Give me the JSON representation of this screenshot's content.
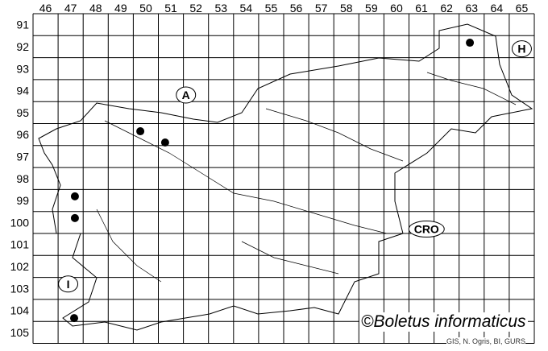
{
  "grid": {
    "columns": [
      "46",
      "47",
      "48",
      "49",
      "50",
      "51",
      "52",
      "53",
      "54",
      "55",
      "56",
      "57",
      "58",
      "59",
      "60",
      "61",
      "62",
      "63",
      "64",
      "65"
    ],
    "rows": [
      "91",
      "92",
      "93",
      "94",
      "95",
      "96",
      "97",
      "98",
      "99",
      "100",
      "101",
      "102",
      "103",
      "104",
      "105"
    ]
  },
  "country_labels": [
    {
      "text": "A",
      "x": 52.1,
      "y": 94.7
    },
    {
      "text": "H",
      "x": 65.5,
      "y": 92.6
    },
    {
      "text": "CRO",
      "x": 61.7,
      "y": 100.8
    },
    {
      "text": "I",
      "x": 47.4,
      "y": 103.3
    }
  ],
  "records": [
    {
      "x": 63.43,
      "y": 92.32
    },
    {
      "x": 50.28,
      "y": 96.35
    },
    {
      "x": 51.27,
      "y": 96.86
    },
    {
      "x": 47.67,
      "y": 99.31
    },
    {
      "x": 47.67,
      "y": 100.3
    },
    {
      "x": 47.64,
      "y": 104.85
    }
  ],
  "credit": "©Boletus informaticus",
  "source": "GIS, N. Ogris, BI, GURS"
}
